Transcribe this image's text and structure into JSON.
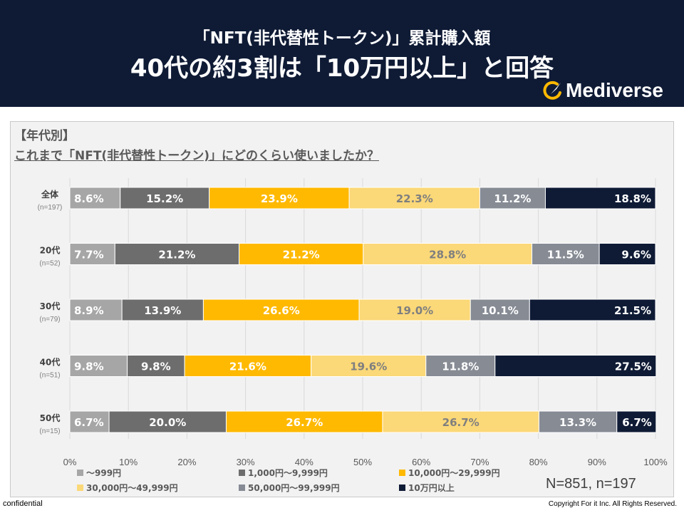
{
  "header": {
    "title_line1": "「NFT(非代替性トークン)」累計購入額",
    "title_line2": "40代の約3割は「10万円以上」と回答",
    "logo_text": "Mediverse"
  },
  "section_label": "【年代別】",
  "question": "これまで「NFT(非代替性トークン)」にどのくらい使いましたか？",
  "sample_note": "N=851, n=197",
  "footer": {
    "confidential": "confidential",
    "copyright": "Copyright For it Inc. All Rights Reserved."
  },
  "colors": {
    "header_bg": "#0f1b35",
    "series": [
      "#a6a6a6",
      "#6d6d6d",
      "#ffb900",
      "#fbd878",
      "#868b94",
      "#0f1b35"
    ],
    "label_text": [
      "#ffffff",
      "#ffffff",
      "#ffffff",
      "#7f7f7f",
      "#ffffff",
      "#ffffff"
    ]
  },
  "chart_data": {
    "type": "bar",
    "orientation": "horizontal",
    "stacked": true,
    "percent": true,
    "categories": [
      {
        "label": "全体",
        "sub": "(n=197)"
      },
      {
        "label": "20代",
        "sub": "(n=52)"
      },
      {
        "label": "30代",
        "sub": "(n=79)"
      },
      {
        "label": "40代",
        "sub": "(n=51)"
      },
      {
        "label": "50代",
        "sub": "(n=15)"
      }
    ],
    "series": [
      {
        "name": "～999円",
        "values": [
          8.6,
          7.7,
          8.9,
          9.8,
          6.7
        ]
      },
      {
        "name": "1,000円～9,999円",
        "values": [
          15.2,
          21.2,
          13.9,
          9.8,
          20.0
        ]
      },
      {
        "name": "10,000円～29,999円",
        "values": [
          23.9,
          21.2,
          26.6,
          21.6,
          26.7
        ]
      },
      {
        "name": "30,000円～49,999円",
        "values": [
          22.3,
          28.8,
          19.0,
          19.6,
          26.7
        ]
      },
      {
        "name": "50,000円～99,999円",
        "values": [
          11.2,
          11.5,
          10.1,
          11.8,
          13.3
        ]
      },
      {
        "name": "10万円以上",
        "values": [
          18.8,
          9.6,
          21.5,
          27.5,
          6.7
        ]
      }
    ],
    "xlim": [
      0,
      100
    ],
    "xticks": [
      "0%",
      "10%",
      "20%",
      "30%",
      "40%",
      "50%",
      "60%",
      "70%",
      "80%",
      "90%",
      "100%"
    ],
    "grid": true,
    "legend": "bottom"
  }
}
